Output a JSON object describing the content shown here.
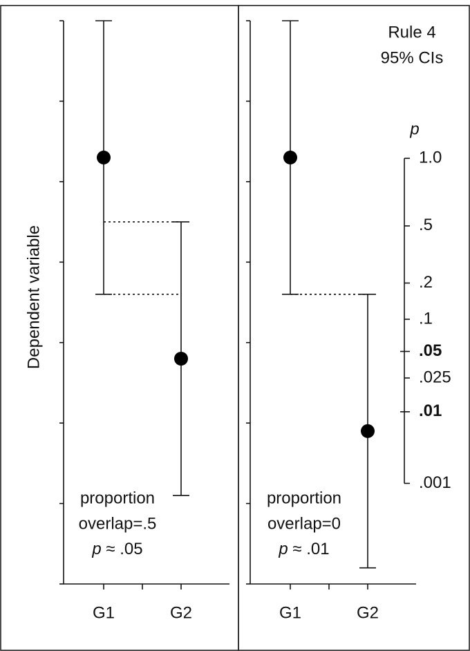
{
  "chart_data": [
    {
      "type": "errorbar",
      "y_label": "Dependent variable",
      "categories": [
        "G1",
        "G2"
      ],
      "values": [
        5.3,
        2.8
      ],
      "errors": [
        1.7,
        1.7
      ],
      "ylim": [
        0,
        7
      ],
      "yticks": [
        0,
        1,
        2,
        3,
        4,
        5,
        6,
        7
      ],
      "color": "#000000",
      "overlap_lines": true,
      "note": [
        "proportion",
        "overlap=.5"
      ],
      "p_note": [
        "p",
        " ≈ .05"
      ]
    },
    {
      "type": "errorbar",
      "title": [
        "Rule 4",
        "95% CIs"
      ],
      "categories": [
        "G1",
        "G2"
      ],
      "values": [
        5.3,
        1.9
      ],
      "errors": [
        1.7,
        1.7
      ],
      "ylim": [
        0,
        7
      ],
      "yticks": [
        0,
        1,
        2,
        3,
        4,
        5,
        6,
        7
      ],
      "color": "#000000",
      "overlap_lines": true,
      "note": [
        "proportion",
        "overlap=0"
      ],
      "p_note": [
        "p",
        " ≈ .01"
      ],
      "p_scale": {
        "title": "p",
        "bold": [
          ".05",
          ".01"
        ],
        "ticks": [
          {
            "value": 5.29,
            "label": "1.0"
          },
          {
            "value": 4.45,
            "label": ".5"
          },
          {
            "value": 3.74,
            "label": ".2"
          },
          {
            "value": 3.29,
            "label": ".1"
          },
          {
            "value": 2.89,
            "label": ".05"
          },
          {
            "value": 2.56,
            "label": ".025"
          },
          {
            "value": 2.14,
            "label": ".01"
          },
          {
            "value": 1.25,
            "label": ".001"
          }
        ]
      }
    }
  ]
}
